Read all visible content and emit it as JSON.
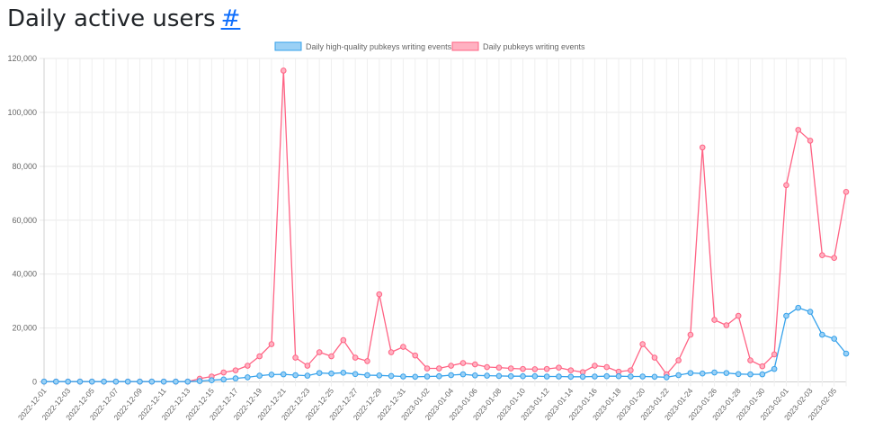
{
  "header": {
    "title": "Daily active users",
    "anchor_label": "#"
  },
  "chart_data": {
    "type": "line",
    "title": "",
    "xlabel": "",
    "ylabel": "",
    "ylim": [
      0,
      120000
    ],
    "y_ticks": [
      "0",
      "20,000",
      "40,000",
      "60,000",
      "80,000",
      "100,000",
      "120,000"
    ],
    "grid": true,
    "legend_position": "top",
    "x": [
      "2022-12-01",
      "2022-12-02",
      "2022-12-03",
      "2022-12-04",
      "2022-12-05",
      "2022-12-06",
      "2022-12-07",
      "2022-12-08",
      "2022-12-09",
      "2022-12-10",
      "2022-12-11",
      "2022-12-12",
      "2022-12-13",
      "2022-12-14",
      "2022-12-15",
      "2022-12-16",
      "2022-12-17",
      "2022-12-18",
      "2022-12-19",
      "2022-12-20",
      "2022-12-21",
      "2022-12-22",
      "2022-12-23",
      "2022-12-24",
      "2022-12-25",
      "2022-12-26",
      "2022-12-27",
      "2022-12-28",
      "2022-12-29",
      "2022-12-30",
      "2022-12-31",
      "2023-01-01",
      "2023-01-02",
      "2023-01-03",
      "2023-01-04",
      "2023-01-05",
      "2023-01-06",
      "2023-01-07",
      "2023-01-08",
      "2023-01-09",
      "2023-01-10",
      "2023-01-11",
      "2023-01-12",
      "2023-01-13",
      "2023-01-14",
      "2023-01-15",
      "2023-01-16",
      "2023-01-17",
      "2023-01-18",
      "2023-01-19",
      "2023-01-20",
      "2023-01-21",
      "2023-01-22",
      "2023-01-23",
      "2023-01-24",
      "2023-01-25",
      "2023-01-26",
      "2023-01-27",
      "2023-01-28",
      "2023-01-29",
      "2023-01-30",
      "2023-01-31",
      "2023-02-01",
      "2023-02-02",
      "2023-02-03",
      "2023-02-04",
      "2023-02-05",
      "2023-02-06"
    ],
    "x_tick_labels": [
      "2022-12-01",
      "2022-12-03",
      "2022-12-05",
      "2022-12-07",
      "2022-12-09",
      "2022-12-11",
      "2022-12-13",
      "2022-12-15",
      "2022-12-17",
      "2022-12-19",
      "2022-12-21",
      "2022-12-23",
      "2022-12-25",
      "2022-12-27",
      "2022-12-29",
      "2022-12-31",
      "2023-01-02",
      "2023-01-04",
      "2023-01-06",
      "2023-01-08",
      "2023-01-10",
      "2023-01-12",
      "2023-01-14",
      "2023-01-16",
      "2023-01-18",
      "2023-01-20",
      "2023-01-22",
      "2023-01-24",
      "2023-01-26",
      "2023-01-28",
      "2023-01-30",
      "2023-02-01",
      "2023-02-03",
      "2023-02-05"
    ],
    "series": [
      {
        "name": "Daily high-quality pubkeys writing events",
        "color": "#36a2eb",
        "fill": "#9ad0f5",
        "values": [
          100,
          100,
          100,
          100,
          100,
          100,
          100,
          100,
          100,
          100,
          100,
          100,
          100,
          300,
          600,
          900,
          1300,
          1700,
          2300,
          2700,
          2800,
          2500,
          2300,
          3300,
          3100,
          3400,
          2900,
          2500,
          2400,
          2200,
          2000,
          1900,
          2000,
          2100,
          2500,
          2800,
          2400,
          2300,
          2200,
          2100,
          2100,
          2100,
          2000,
          2000,
          1900,
          1900,
          2000,
          2100,
          2100,
          2000,
          2000,
          1900,
          1700,
          2500,
          3300,
          3100,
          3500,
          3300,
          2900,
          2800,
          2800,
          4800,
          24500,
          27500,
          26000,
          17500,
          16000,
          10500
        ]
      },
      {
        "name": "Daily pubkeys writing events",
        "color": "#ff6384",
        "fill": "#ffb1c1",
        "values": [
          100,
          100,
          100,
          100,
          100,
          100,
          100,
          100,
          100,
          100,
          100,
          100,
          100,
          1200,
          2000,
          3500,
          4300,
          6000,
          9500,
          14000,
          115500,
          9000,
          6000,
          11000,
          9500,
          15500,
          9000,
          7700,
          32500,
          11000,
          13000,
          9800,
          5000,
          5000,
          6000,
          7000,
          6500,
          5500,
          5300,
          5000,
          4800,
          4700,
          4800,
          5300,
          4300,
          3600,
          6000,
          5500,
          3800,
          4300,
          14000,
          9000,
          2800,
          8000,
          17500,
          87000,
          23000,
          21000,
          24500,
          8000,
          5800,
          10200,
          73000,
          93500,
          89500,
          47000,
          46000,
          70500
        ]
      }
    ]
  }
}
